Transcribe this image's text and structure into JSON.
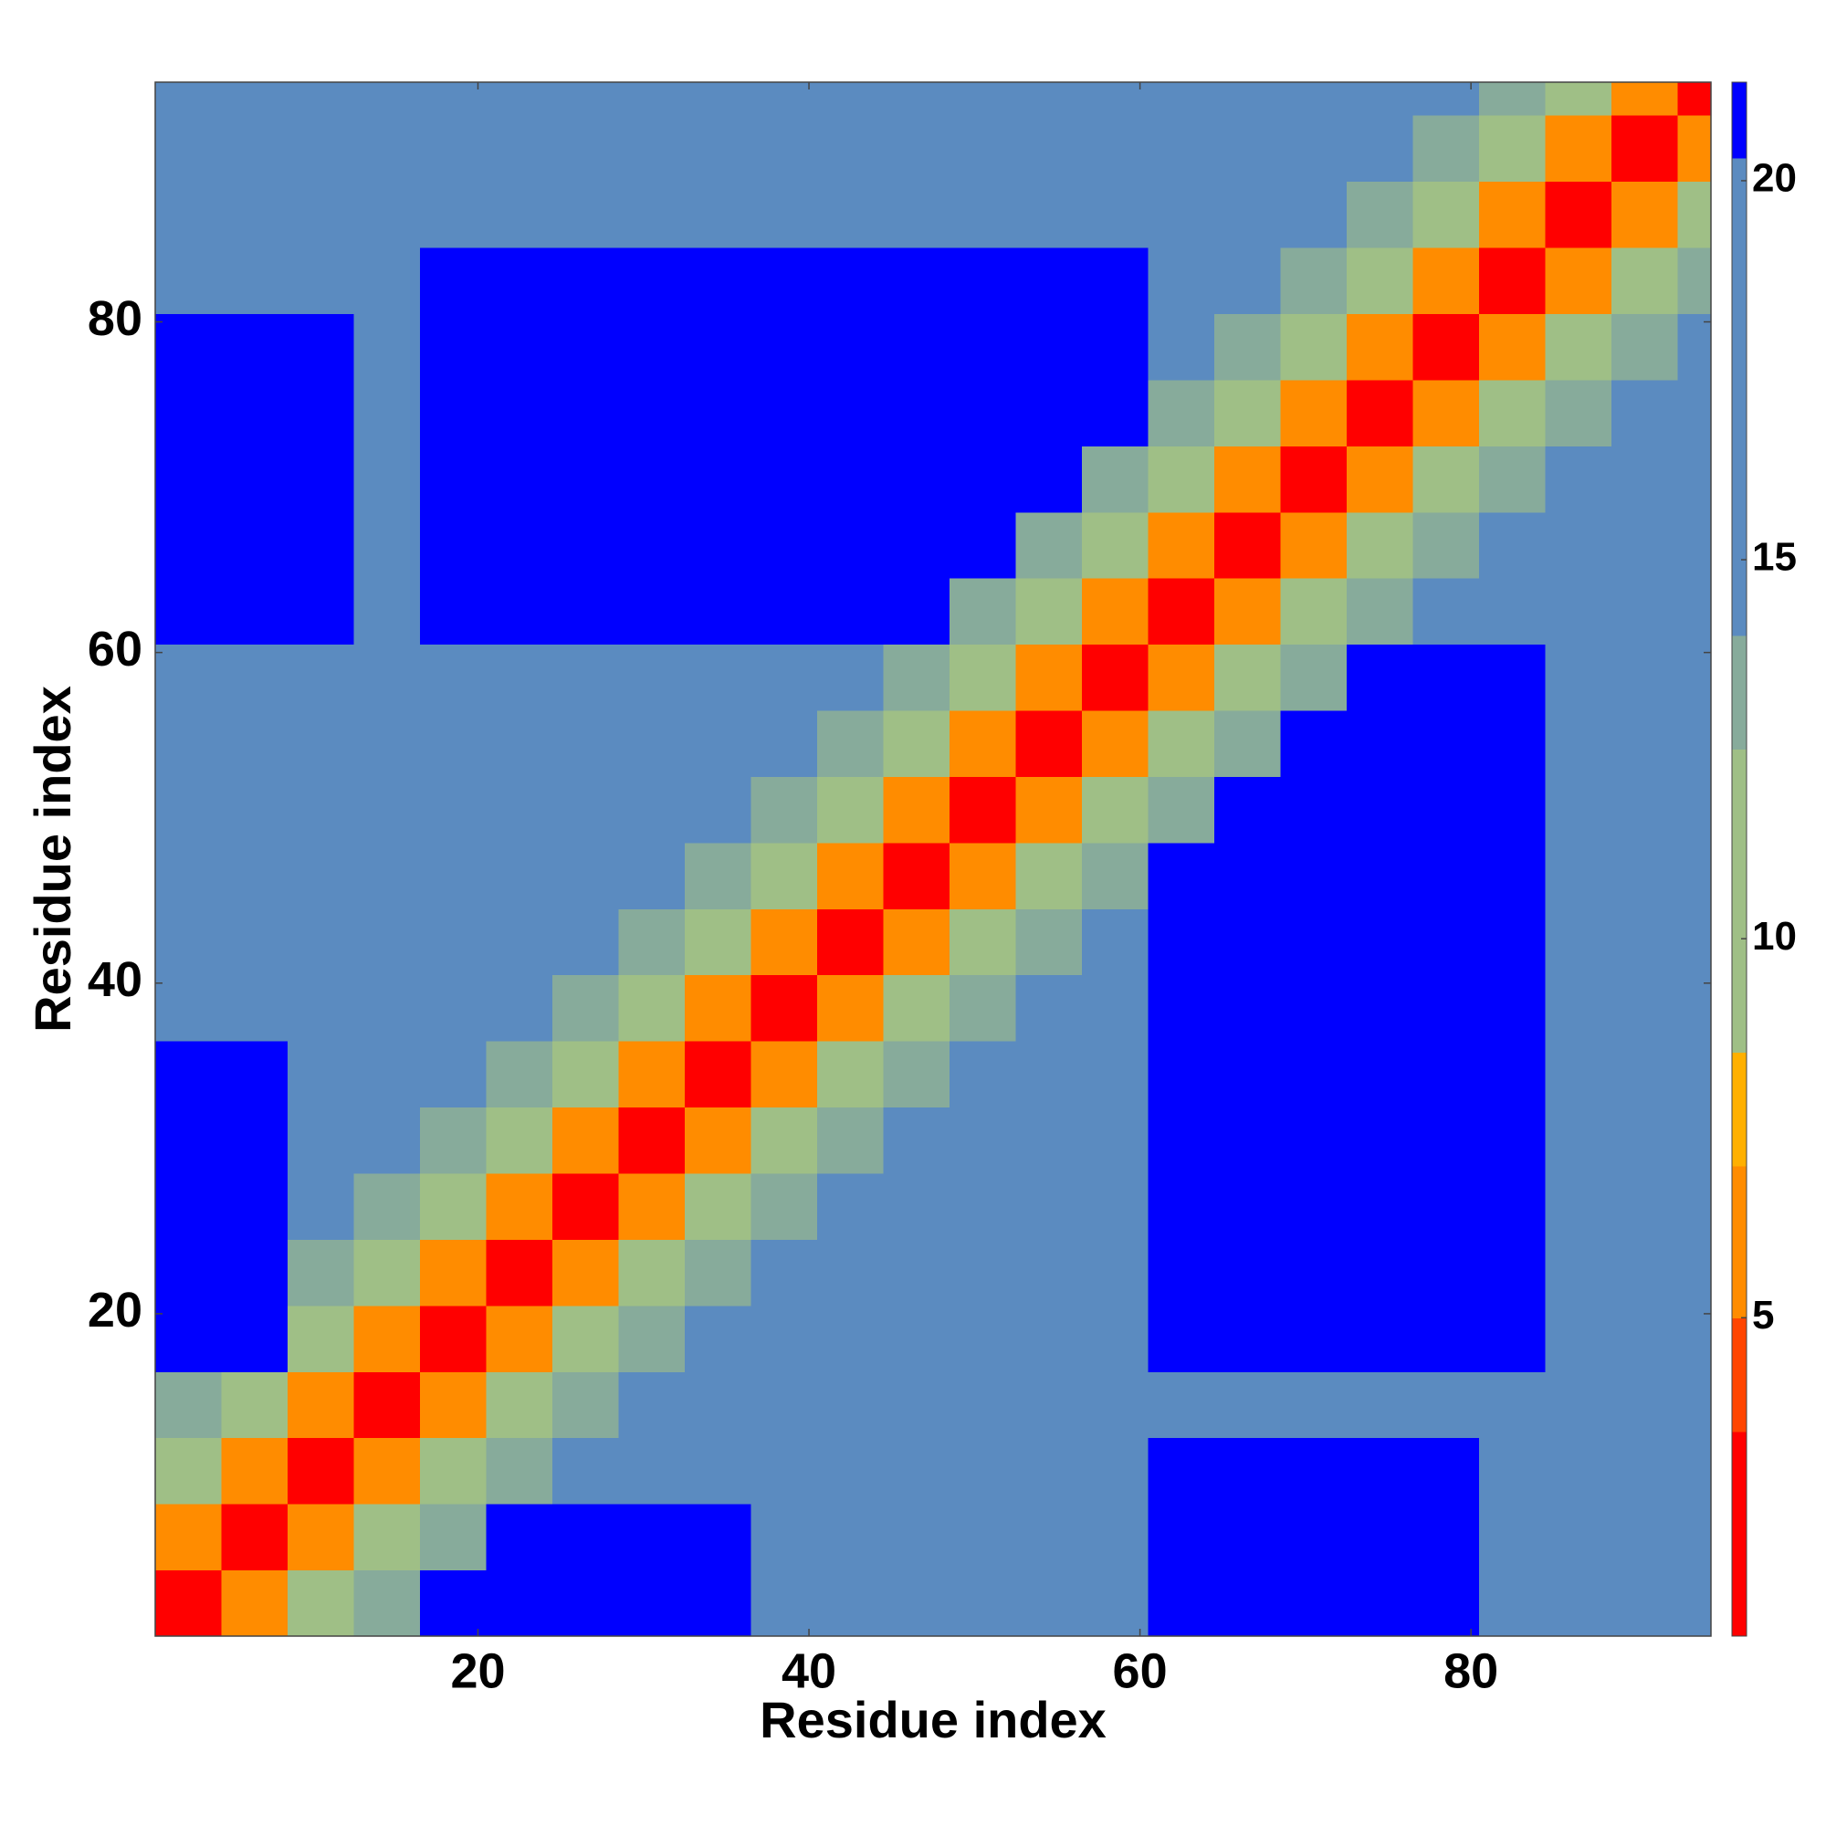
{
  "chart_data": {
    "type": "heatmap",
    "xlabel": "Residue index",
    "ylabel": "Residue index",
    "xbins": [
      0.5,
      4.5,
      8.5,
      12.5,
      16.5,
      20.5,
      24.5,
      28.5,
      32.5,
      36.5,
      40.5,
      44.5,
      48.5,
      52.5,
      56.5,
      60.5,
      64.5,
      68.5,
      72.5,
      76.5,
      80.5,
      84.5,
      88.5,
      92.5,
      94.5
    ],
    "ybins": [
      0.5,
      4.5,
      8.5,
      12.5,
      16.5,
      20.5,
      24.5,
      28.5,
      32.5,
      36.5,
      40.5,
      44.5,
      48.5,
      52.5,
      56.5,
      60.5,
      64.5,
      68.5,
      72.5,
      76.5,
      80.5,
      84.5,
      88.5,
      92.5,
      94.5
    ],
    "xlim": [
      0.5,
      94.5
    ],
    "ylim": [
      0.5,
      94.5
    ],
    "xticks": [
      20,
      40,
      60,
      80
    ],
    "yticks": [
      20,
      40,
      60,
      80
    ],
    "z": [
      [
        2,
        6,
        11,
        13,
        21,
        21,
        21,
        21,
        21,
        19,
        19,
        19,
        19,
        19,
        19,
        21,
        21,
        21,
        21,
        21,
        16,
        16,
        16,
        16
      ],
      [
        6,
        2,
        6,
        11,
        13,
        21,
        21,
        21,
        21,
        16,
        16,
        16,
        16,
        16,
        16,
        21,
        21,
        21,
        21,
        21,
        16,
        16,
        16,
        16
      ],
      [
        11,
        6,
        2,
        6,
        11,
        13,
        16,
        16,
        16,
        16,
        16,
        16,
        16,
        16,
        16,
        21,
        21,
        21,
        21,
        21,
        16,
        16,
        16,
        16
      ],
      [
        13,
        11,
        6,
        2,
        6,
        11,
        13,
        16,
        16,
        16,
        16,
        16,
        16,
        16,
        16,
        16,
        16,
        16,
        16,
        16,
        16,
        16,
        19,
        19
      ],
      [
        21,
        21,
        11,
        6,
        2,
        6,
        11,
        13,
        16,
        16,
        16,
        16,
        16,
        16,
        16,
        21,
        21,
        21,
        21,
        21,
        21,
        16,
        19,
        19
      ],
      [
        21,
        21,
        13,
        11,
        6,
        2,
        6,
        11,
        13,
        16,
        16,
        16,
        16,
        16,
        16,
        21,
        21,
        21,
        21,
        21,
        21,
        16,
        19,
        19
      ],
      [
        21,
        21,
        16,
        13,
        11,
        6,
        2,
        6,
        11,
        13,
        16,
        16,
        16,
        16,
        16,
        21,
        21,
        21,
        21,
        21,
        21,
        16,
        19,
        19
      ],
      [
        21,
        21,
        16,
        16,
        13,
        11,
        6,
        2,
        6,
        11,
        13,
        16,
        16,
        16,
        16,
        21,
        21,
        21,
        21,
        21,
        21,
        16,
        19,
        19
      ],
      [
        21,
        21,
        16,
        16,
        16,
        13,
        11,
        6,
        2,
        6,
        11,
        13,
        16,
        16,
        16,
        21,
        21,
        21,
        21,
        21,
        21,
        16,
        19,
        19
      ],
      [
        19,
        16,
        16,
        16,
        16,
        16,
        13,
        11,
        6,
        2,
        6,
        11,
        13,
        16,
        16,
        21,
        21,
        21,
        21,
        21,
        21,
        16,
        19,
        19
      ],
      [
        19,
        16,
        16,
        16,
        16,
        16,
        16,
        13,
        11,
        6,
        2,
        6,
        11,
        13,
        16,
        21,
        21,
        21,
        21,
        21,
        21,
        16,
        19,
        19
      ],
      [
        19,
        16,
        16,
        16,
        16,
        16,
        16,
        16,
        13,
        11,
        6,
        2,
        6,
        11,
        13,
        21,
        21,
        21,
        21,
        21,
        21,
        19,
        19,
        19
      ],
      [
        19,
        16,
        16,
        16,
        16,
        16,
        16,
        16,
        16,
        13,
        11,
        6,
        2,
        6,
        11,
        13,
        21,
        21,
        21,
        21,
        21,
        19,
        19,
        19
      ],
      [
        19,
        16,
        16,
        16,
        16,
        16,
        16,
        16,
        16,
        16,
        13,
        11,
        6,
        2,
        6,
        11,
        13,
        21,
        21,
        21,
        21,
        19,
        19,
        19
      ],
      [
        19,
        16,
        16,
        16,
        16,
        16,
        16,
        16,
        16,
        16,
        16,
        13,
        11,
        6,
        2,
        6,
        11,
        13,
        21,
        21,
        21,
        19,
        19,
        19
      ],
      [
        21,
        21,
        21,
        16,
        21,
        21,
        21,
        21,
        21,
        21,
        21,
        21,
        13,
        11,
        6,
        2,
        6,
        11,
        13,
        16,
        16,
        16,
        16,
        16
      ],
      [
        21,
        21,
        21,
        16,
        21,
        21,
        21,
        21,
        21,
        21,
        21,
        21,
        21,
        13,
        11,
        6,
        2,
        6,
        11,
        13,
        16,
        16,
        16,
        16
      ],
      [
        21,
        21,
        21,
        16,
        21,
        21,
        21,
        21,
        21,
        21,
        21,
        21,
        21,
        21,
        13,
        11,
        6,
        2,
        6,
        11,
        13,
        16,
        16,
        16
      ],
      [
        21,
        21,
        21,
        16,
        21,
        21,
        21,
        21,
        21,
        21,
        21,
        21,
        21,
        21,
        21,
        13,
        11,
        6,
        2,
        6,
        11,
        13,
        16,
        16
      ],
      [
        21,
        21,
        21,
        16,
        21,
        21,
        21,
        21,
        21,
        21,
        21,
        21,
        21,
        21,
        21,
        16,
        13,
        11,
        6,
        2,
        6,
        11,
        13,
        16
      ],
      [
        16,
        16,
        16,
        16,
        21,
        21,
        21,
        21,
        21,
        21,
        21,
        21,
        21,
        21,
        21,
        16,
        16,
        13,
        11,
        6,
        2,
        6,
        11,
        13
      ],
      [
        16,
        16,
        16,
        16,
        16,
        16,
        16,
        16,
        16,
        16,
        16,
        19,
        19,
        19,
        19,
        16,
        16,
        16,
        13,
        11,
        6,
        2,
        6,
        11
      ],
      [
        16,
        16,
        16,
        19,
        19,
        19,
        19,
        19,
        19,
        19,
        19,
        19,
        19,
        19,
        19,
        16,
        16,
        16,
        16,
        13,
        11,
        6,
        2,
        6
      ],
      [
        16,
        16,
        16,
        19,
        19,
        19,
        19,
        19,
        19,
        19,
        19,
        19,
        19,
        19,
        19,
        16,
        16,
        16,
        16,
        16,
        13,
        11,
        6,
        2
      ]
    ],
    "colorbar": {
      "zlim": [
        0.8,
        21.3
      ],
      "zticks": [
        5,
        10,
        15,
        20
      ],
      "bounds": [
        0.8,
        3.5,
        5,
        7,
        8.5,
        12.5,
        14,
        20.3,
        21.3
      ],
      "colors": [
        "#ff0000",
        "#ff4500",
        "#ff8c00",
        "#ffb000",
        "#9fbf86",
        "#87ab9b",
        "#5b8bc0",
        "#0000ff"
      ]
    }
  }
}
